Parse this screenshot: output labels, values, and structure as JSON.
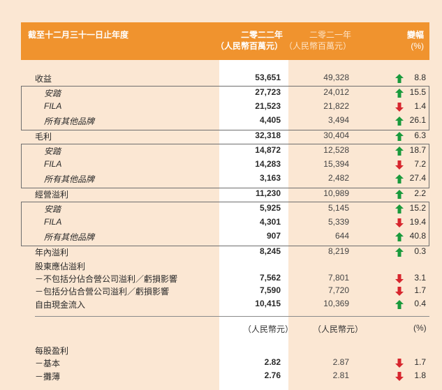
{
  "header": {
    "title": "截至十二月三十一日止年度",
    "col_2022_line1": "二零二二年",
    "col_2022_line2": "（人民幣百萬元）",
    "col_2021_line1": "二零二一年",
    "col_2021_line2": "（人民幣百萬元）",
    "col_change_line1": "變幅",
    "col_change_line2": "(%)"
  },
  "rows": [
    {
      "label": "收益",
      "indent": false,
      "v2022": "53,651",
      "v2021": "49,328",
      "dir": "up",
      "change": "8.8"
    },
    {
      "label": "安踏",
      "indent": true,
      "v2022": "27,723",
      "v2021": "24,012",
      "dir": "up",
      "change": "15.5"
    },
    {
      "label": "FILA",
      "indent": true,
      "v2022": "21,523",
      "v2021": "21,822",
      "dir": "down",
      "change": "1.4"
    },
    {
      "label": "所有其他品牌",
      "indent": true,
      "v2022": "4,405",
      "v2021": "3,494",
      "dir": "up",
      "change": "26.1"
    },
    {
      "label": "毛利",
      "indent": false,
      "v2022": "32,318",
      "v2021": "30,404",
      "dir": "up",
      "change": "6.3"
    },
    {
      "label": "安踏",
      "indent": true,
      "v2022": "14,872",
      "v2021": "12,528",
      "dir": "up",
      "change": "18.7"
    },
    {
      "label": "FILA",
      "indent": true,
      "v2022": "14,283",
      "v2021": "15,394",
      "dir": "down",
      "change": "7.2"
    },
    {
      "label": "所有其他品牌",
      "indent": true,
      "v2022": "3,163",
      "v2021": "2,482",
      "dir": "up",
      "change": "27.4"
    },
    {
      "label": "經營溢利",
      "indent": false,
      "v2022": "11,230",
      "v2021": "10,989",
      "dir": "up",
      "change": "2.2"
    },
    {
      "label": "安踏",
      "indent": true,
      "v2022": "5,925",
      "v2021": "5,145",
      "dir": "up",
      "change": "15.2"
    },
    {
      "label": "FILA",
      "indent": true,
      "v2022": "4,301",
      "v2021": "5,339",
      "dir": "down",
      "change": "19.4"
    },
    {
      "label": "所有其他品牌",
      "indent": true,
      "v2022": "907",
      "v2021": "644",
      "dir": "up",
      "change": "40.8"
    },
    {
      "label": "年內溢利",
      "indent": false,
      "v2022": "8,245",
      "v2021": "8,219",
      "dir": "up",
      "change": "0.3"
    },
    {
      "label": "股東應佔溢利",
      "indent": false,
      "v2022": "",
      "v2021": "",
      "dir": "",
      "change": ""
    },
    {
      "label": "－不包括分佔合營公司溢利／虧損影響",
      "indent": false,
      "v2022": "7,562",
      "v2021": "7,801",
      "dir": "down",
      "change": "3.1"
    },
    {
      "label": "－包括分佔合營公司溢利／虧損影響",
      "indent": false,
      "v2022": "7,590",
      "v2021": "7,720",
      "dir": "down",
      "change": "1.7"
    },
    {
      "label": "自由現金流入",
      "indent": false,
      "v2022": "10,415",
      "v2021": "10,369",
      "dir": "up",
      "change": "0.4"
    }
  ],
  "units": {
    "u2022": "（人民幣元）",
    "u2021": "（人民幣元）",
    "uchg": "(%)"
  },
  "eps_rows": [
    {
      "label": "每股盈利",
      "v2022": "",
      "v2021": "",
      "dir": "",
      "change": ""
    },
    {
      "label": "－基本",
      "v2022": "2.82",
      "v2021": "2.87",
      "dir": "down",
      "change": "1.7"
    },
    {
      "label": "－攤薄",
      "v2022": "2.76",
      "v2021": "2.81",
      "dir": "down",
      "change": "1.8"
    }
  ],
  "colors": {
    "up": "#1a9a3c",
    "down": "#d7262e",
    "header": "#f0932e",
    "background": "#fbe7d3"
  }
}
